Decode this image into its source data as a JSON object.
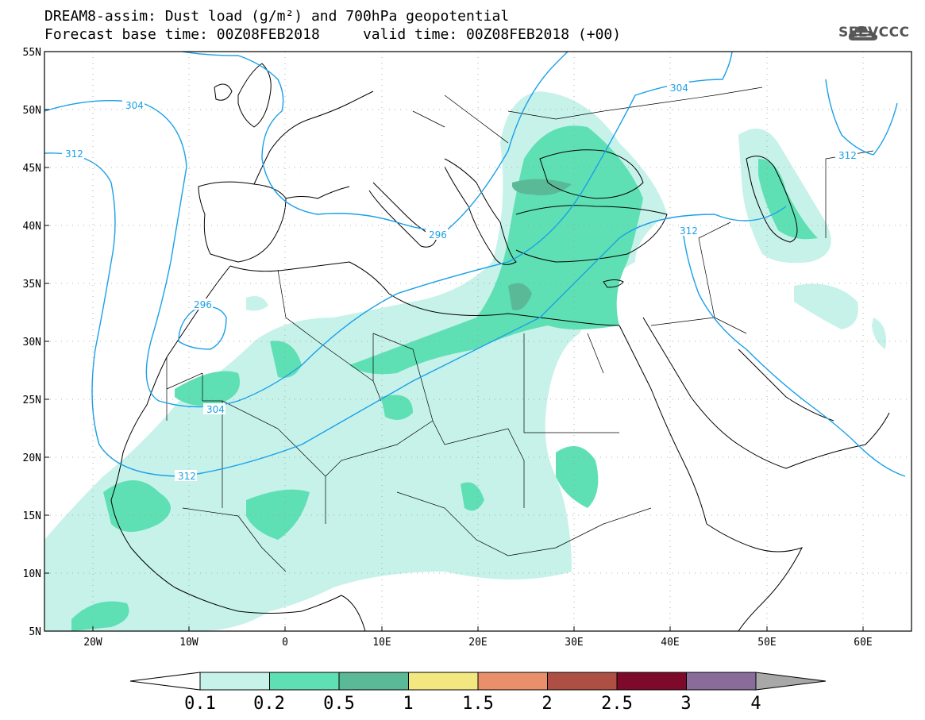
{
  "title": {
    "line1": "DREAM8-assim: Dust load (g/m²) and 700hPa geopotential",
    "line2": "Forecast base time: 00Z08FEB2018     valid time: 00Z08FEB2018 (+00)"
  },
  "logo": {
    "text": "SEEVCCC",
    "icon": "cloud-icon"
  },
  "map": {
    "lat_labels": [
      "55N",
      "50N",
      "45N",
      "40N",
      "35N",
      "30N",
      "25N",
      "20N",
      "15N",
      "10N",
      "5N"
    ],
    "lon_labels": [
      "20W",
      "10W",
      "0",
      "10E",
      "20E",
      "30E",
      "40E",
      "50E",
      "60E"
    ],
    "extent": {
      "lon": [
        -25,
        65
      ],
      "lat": [
        5,
        55
      ]
    },
    "contour_labels": [
      "304",
      "312",
      "304",
      "296",
      "296",
      "304",
      "312",
      "312",
      "312"
    ]
  },
  "colorbar": {
    "levels": [
      "0.1",
      "0.2",
      "0.5",
      "1",
      "1.5",
      "2",
      "2.5",
      "3",
      "4"
    ],
    "colors": [
      "#c6f2ea",
      "#5fe0b4",
      "#5ab996",
      "#f3e880",
      "#e9906b",
      "#ae4f43",
      "#7d0a2a",
      "#8a6c9b"
    ],
    "under_color": "#ffffff",
    "over_color": "#a8a8a8"
  },
  "colors": {
    "contour": "#1aa0e8",
    "dust_light": "#c6f2ea",
    "dust_mid": "#5fe0b4",
    "dust_dark": "#5ab996"
  }
}
